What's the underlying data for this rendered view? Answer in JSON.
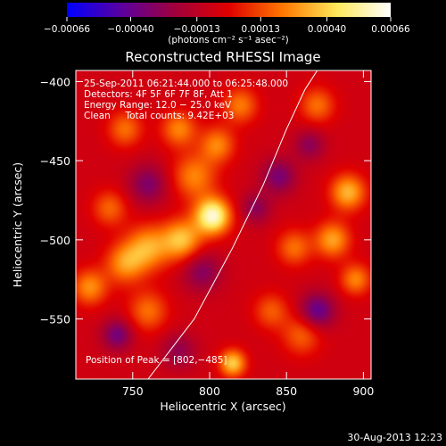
{
  "chart_data": {
    "type": "heatmap",
    "title": "Reconstructed RHESSI Image",
    "xlabel": "Heliocentric X (arcsec)",
    "ylabel": "Heliocentric Y (arcsec)",
    "xlim": [
      713,
      905
    ],
    "ylim": [
      -588,
      -393
    ],
    "x_ticks": [
      750,
      800,
      850,
      900
    ],
    "x_tick_labels": [
      "750",
      "800",
      "850",
      "900"
    ],
    "y_ticks": [
      -550,
      -500,
      -450,
      -400
    ],
    "y_tick_labels": [
      "−550",
      "−500",
      "−450",
      "−400"
    ],
    "colorbar": {
      "ticks": [
        -0.00066,
        -0.0004,
        -0.00013,
        0.00013,
        0.0004,
        0.00066
      ],
      "tick_labels": [
        "−0.00066",
        "−0.00040",
        "−0.00013",
        "0.00013",
        "0.00040",
        "0.00066"
      ],
      "range": [
        -0.00066,
        0.00066
      ],
      "unit_label": "(photons cm⁻² s⁻¹ asec⁻²)",
      "colormap": [
        "#0000ff",
        "#5a00a0",
        "#a0003c",
        "#e00000",
        "#ff7800",
        "#ffe85a",
        "#ffffff"
      ]
    },
    "annotations": [
      "25‑Sep‑2011 06:21:44.000 to 06:25:48.000",
      "Detectors: 4F 5F 6F 7F 8F, Att 1",
      "Energy Range: 12.0 − 25.0 keV",
      "Clean     Total counts: 9.42E+03"
    ],
    "peak_label": "Position of Peak = [802,−485]",
    "peak": {
      "x": 802,
      "y": -485,
      "value": 0.00066
    },
    "limb_curve": {
      "x": [
        760,
        790,
        815,
        835,
        850,
        862,
        870
      ],
      "y": [
        -588,
        -550,
        -505,
        -465,
        -430,
        -405,
        -393
      ]
    },
    "sources": [
      {
        "x": 802,
        "y": -485,
        "sigma": 8,
        "amp": 0.00066
      },
      {
        "x": 782,
        "y": -500,
        "sigma": 9,
        "amp": 0.00042
      },
      {
        "x": 760,
        "y": -505,
        "sigma": 10,
        "amp": 0.00036
      },
      {
        "x": 745,
        "y": -515,
        "sigma": 9,
        "amp": 0.00032
      },
      {
        "x": 790,
        "y": -460,
        "sigma": 10,
        "amp": 0.0003
      },
      {
        "x": 780,
        "y": -430,
        "sigma": 8,
        "amp": 0.0003
      },
      {
        "x": 805,
        "y": -440,
        "sigma": 8,
        "amp": 0.0003
      },
      {
        "x": 745,
        "y": -430,
        "sigma": 8,
        "amp": 0.00026
      },
      {
        "x": 820,
        "y": -415,
        "sigma": 8,
        "amp": 0.00028
      },
      {
        "x": 735,
        "y": -480,
        "sigma": 8,
        "amp": 0.00024
      },
      {
        "x": 722,
        "y": -530,
        "sigma": 8,
        "amp": 0.00032
      },
      {
        "x": 760,
        "y": -545,
        "sigma": 9,
        "amp": 0.00026
      },
      {
        "x": 815,
        "y": -578,
        "sigma": 6,
        "amp": 0.00045
      },
      {
        "x": 890,
        "y": -470,
        "sigma": 8,
        "amp": 0.0004
      },
      {
        "x": 880,
        "y": -500,
        "sigma": 8,
        "amp": 0.00036
      },
      {
        "x": 855,
        "y": -505,
        "sigma": 8,
        "amp": 0.00026
      },
      {
        "x": 860,
        "y": -560,
        "sigma": 9,
        "amp": 0.00024
      },
      {
        "x": 840,
        "y": -545,
        "sigma": 8,
        "amp": 0.00022
      },
      {
        "x": 870,
        "y": -415,
        "sigma": 8,
        "amp": 0.00026
      },
      {
        "x": 895,
        "y": -525,
        "sigma": 7,
        "amp": 0.0003
      },
      {
        "x": 845,
        "y": -460,
        "sigma": 8,
        "amp": -0.00028
      },
      {
        "x": 760,
        "y": -465,
        "sigma": 9,
        "amp": -0.00026
      },
      {
        "x": 870,
        "y": -545,
        "sigma": 8,
        "amp": -0.00036
      },
      {
        "x": 795,
        "y": -520,
        "sigma": 9,
        "amp": -0.00024
      },
      {
        "x": 740,
        "y": -560,
        "sigma": 7,
        "amp": -0.0003
      },
      {
        "x": 830,
        "y": -480,
        "sigma": 7,
        "amp": -0.00022
      },
      {
        "x": 780,
        "y": -570,
        "sigma": 8,
        "amp": -0.0002
      },
      {
        "x": 865,
        "y": -440,
        "sigma": 7,
        "amp": -0.00022
      }
    ]
  },
  "footer": {
    "timestamp": "30‑Aug‑2013 12:23"
  }
}
